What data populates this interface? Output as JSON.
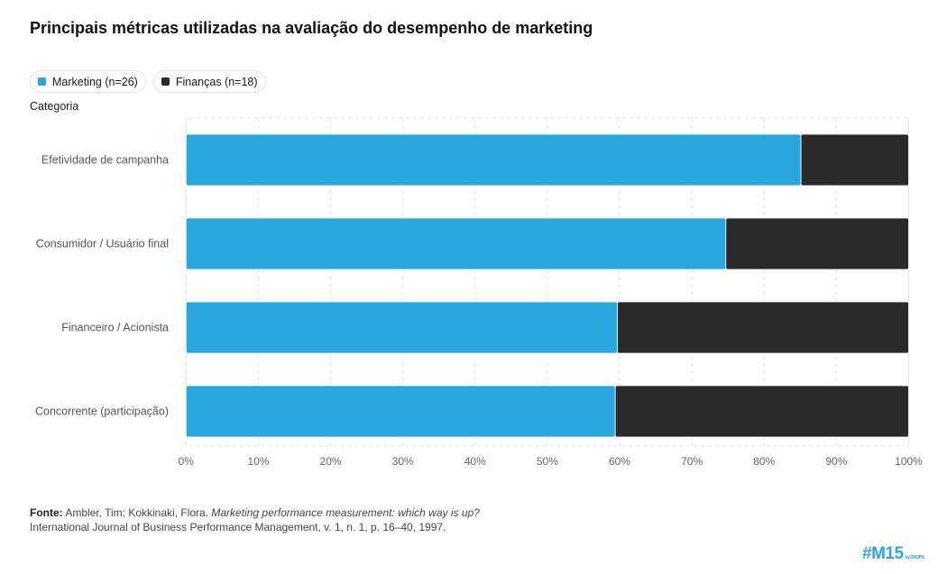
{
  "title": "Principais métricas utilizadas na avaliação do desempenho de marketing",
  "legend": [
    {
      "label": "Marketing (n=26)",
      "color": "#29a8e0"
    },
    {
      "label": "Finanças (n=18)",
      "color": "#2a2a2a"
    }
  ],
  "category_label": "Categoria",
  "chart_data": {
    "type": "bar",
    "orientation": "horizontal",
    "stacked": true,
    "categories": [
      "Efetividade de campanha",
      "Consumidor / Usuário final",
      "Financeiro / Acionista",
      "Concorrente (participação)"
    ],
    "series": [
      {
        "name": "Marketing (n=26)",
        "values": [
          85.1,
          74.7,
          59.7,
          59.4
        ]
      },
      {
        "name": "Finanças (n=18)",
        "values": [
          14.9,
          25.3,
          40.3,
          40.6
        ]
      }
    ],
    "xlim": [
      0,
      100
    ],
    "xticks": [
      "0%",
      "10%",
      "20%",
      "30%",
      "40%",
      "50%",
      "60%",
      "70%",
      "80%",
      "90%",
      "100%"
    ],
    "ylabel": "Categoria",
    "grid": true,
    "legend_position": "top-left"
  },
  "source": {
    "label": "Fonte:",
    "authors": "Ambler, Tim; Kokkinaki, Flora.",
    "work": "Marketing performance measurement: which way is up?",
    "journal": "International Journal of Business Performance Management, v. 1, n. 1, p. 16–40, 1997."
  },
  "logo": {
    "text": "#M15",
    "sub": "by DROPS"
  }
}
